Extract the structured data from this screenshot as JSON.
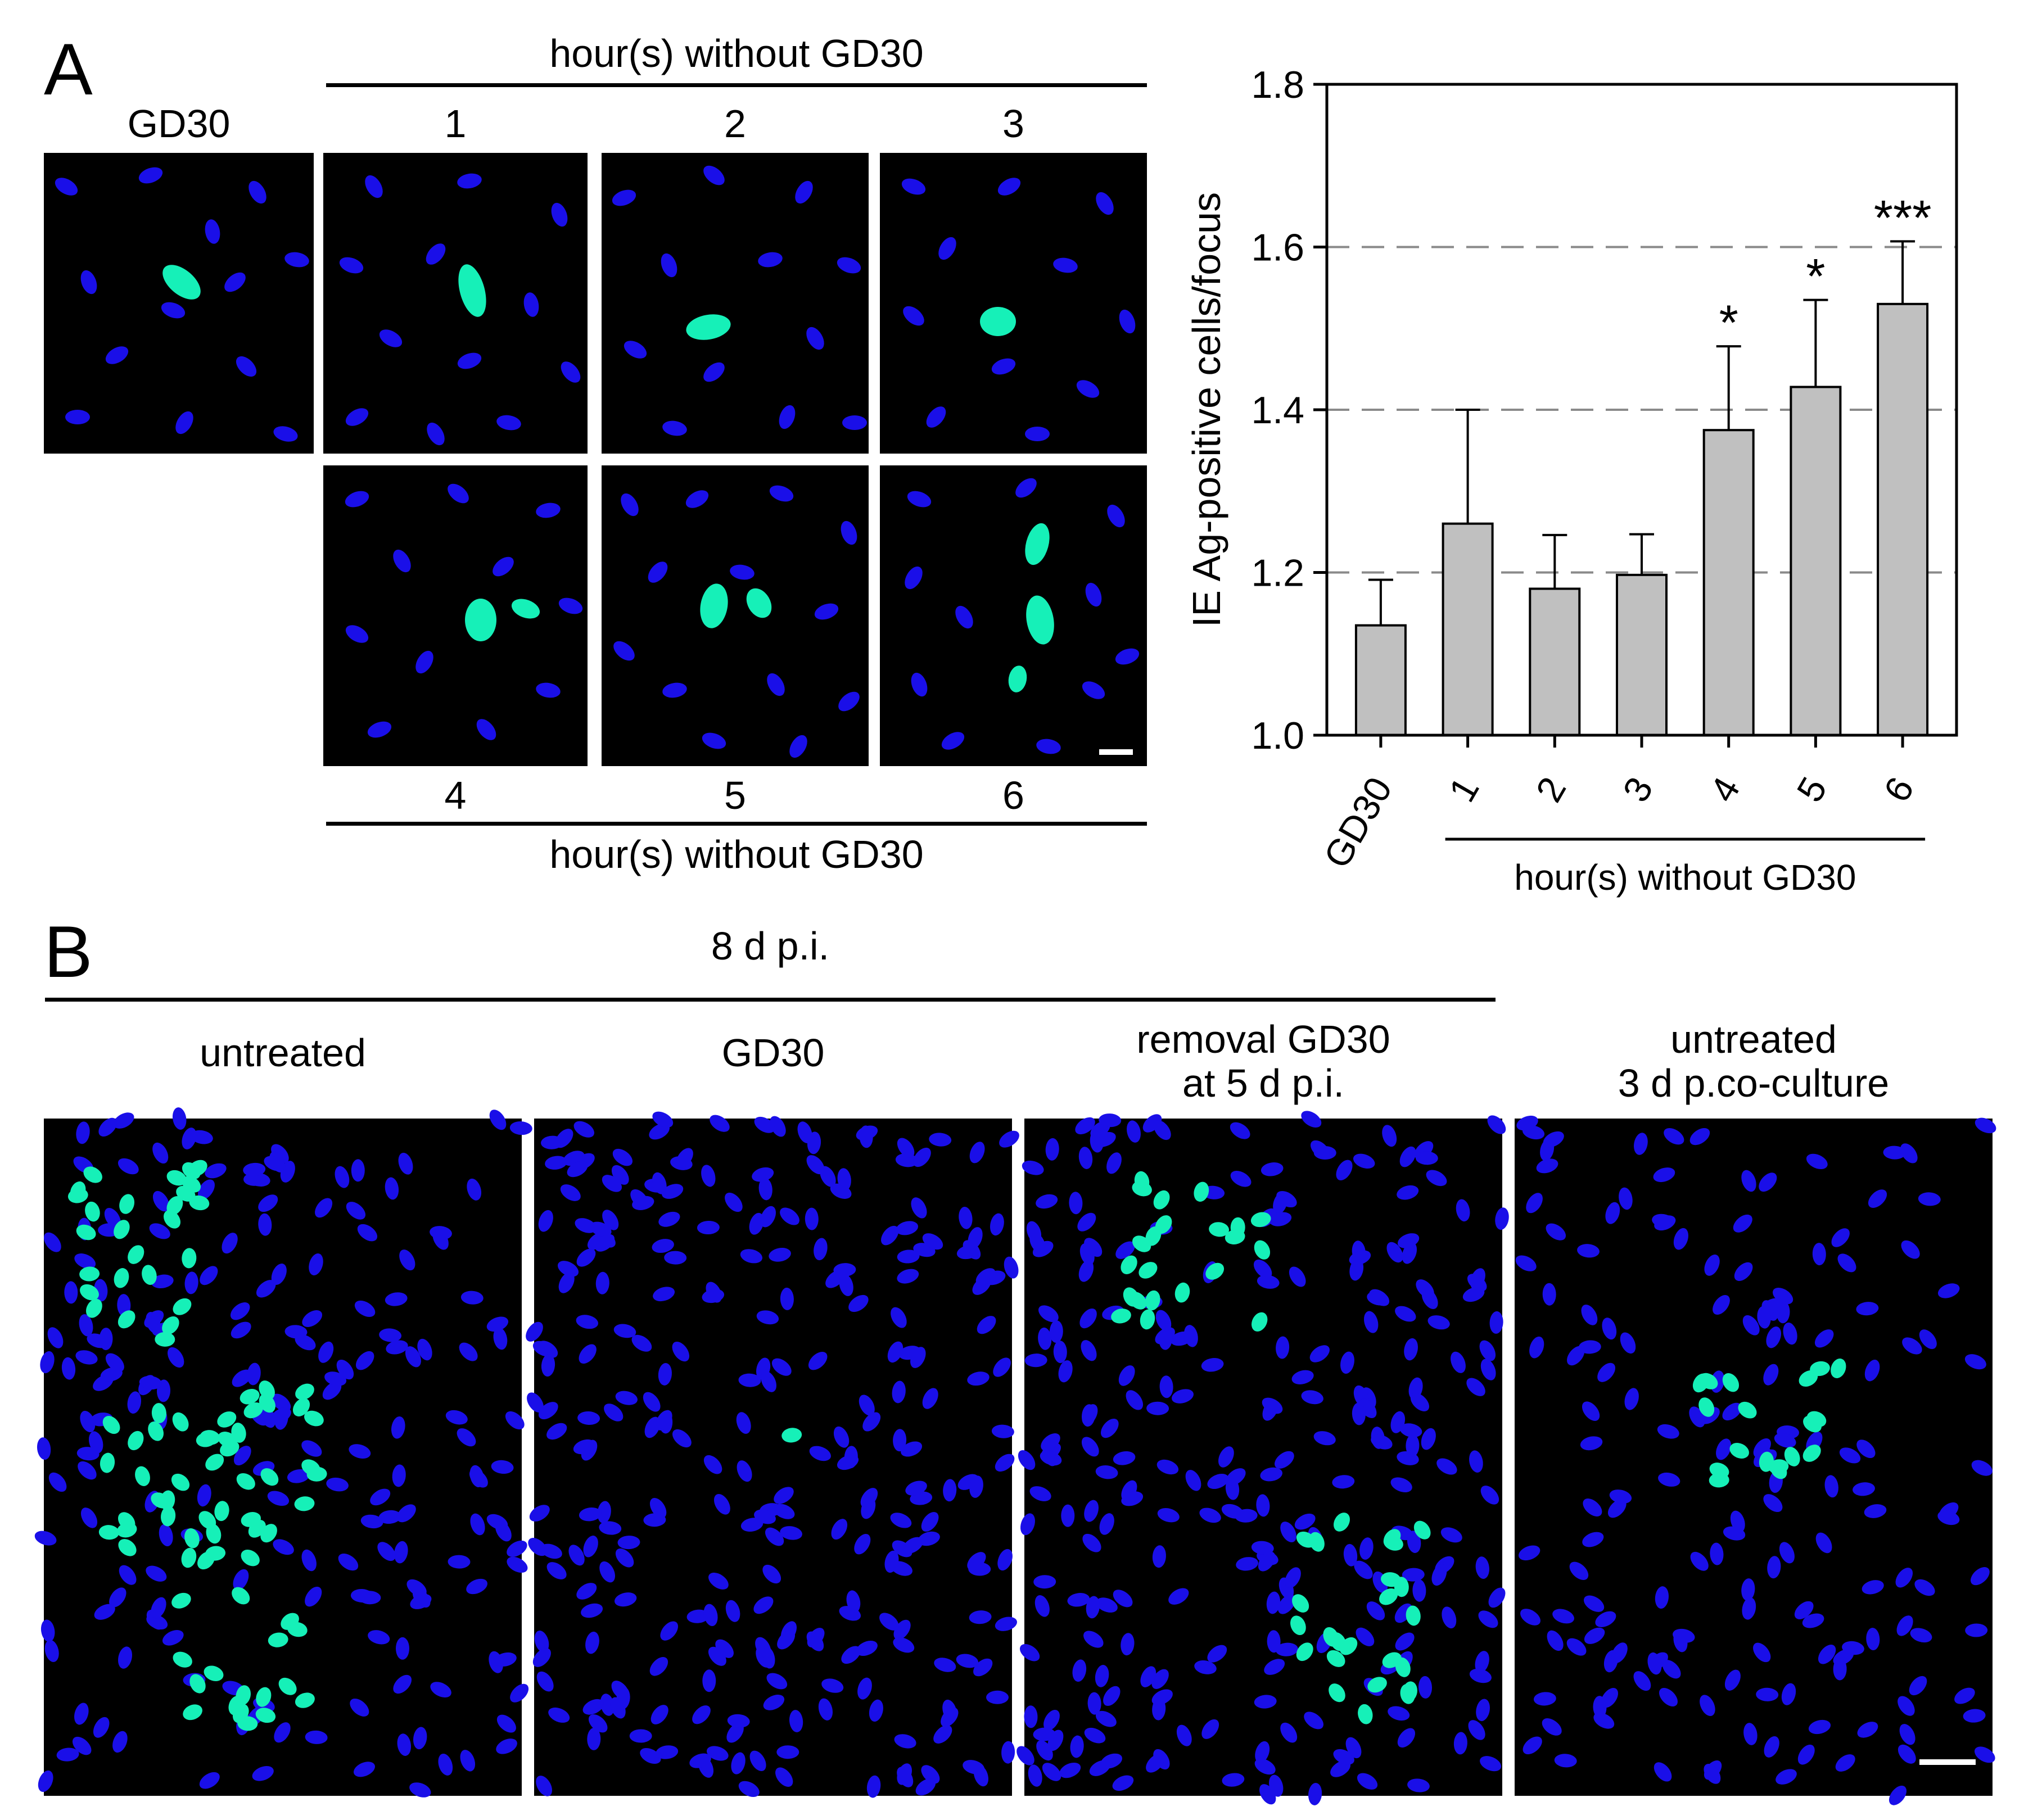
{
  "panel_a": {
    "letter": "A",
    "top_group_label": "hour(s) without GD30",
    "bottom_group_label": "hour(s) without GD30",
    "image_labels": [
      "GD30",
      "1",
      "2",
      "3",
      "4",
      "5",
      "6"
    ]
  },
  "panel_b": {
    "letter": "B",
    "group_label": "8 d p.i.",
    "image_labels": [
      {
        "line1": "untreated",
        "line2": ""
      },
      {
        "line1": "GD30",
        "line2": ""
      },
      {
        "line1": "removal GD30",
        "line2": "at 5 d p.i."
      },
      {
        "line1": "untreated",
        "line2": "3 d p.co-culture"
      }
    ]
  },
  "colors": {
    "nucleus": "#1a0fe8",
    "positive": "#16f0b8",
    "bar_fill": "#c0c0c0",
    "grid": "#8a8a8a"
  },
  "chart_data": {
    "type": "bar",
    "categories": [
      "GD30",
      "1",
      "2",
      "3",
      "4",
      "5",
      "6"
    ],
    "values": [
      1.135,
      1.26,
      1.18,
      1.197,
      1.375,
      1.428,
      1.53
    ],
    "errors": [
      0.056,
      0.14,
      0.066,
      0.05,
      0.103,
      0.107,
      0.077
    ],
    "significance": [
      "",
      "",
      "",
      "",
      "*",
      "*",
      "***"
    ],
    "ylabel": "IE Ag-positive cells/focus",
    "xlabel": "hour(s) without GD30",
    "ylim": [
      1.0,
      1.8
    ],
    "yticks": [
      1.0,
      1.2,
      1.4,
      1.6,
      1.8
    ],
    "ytick_labels": [
      "1.0",
      "1.2",
      "1.4",
      "1.6",
      "1.8"
    ],
    "dashed_gridlines": [
      1.2,
      1.4,
      1.6
    ],
    "legend": "none"
  }
}
